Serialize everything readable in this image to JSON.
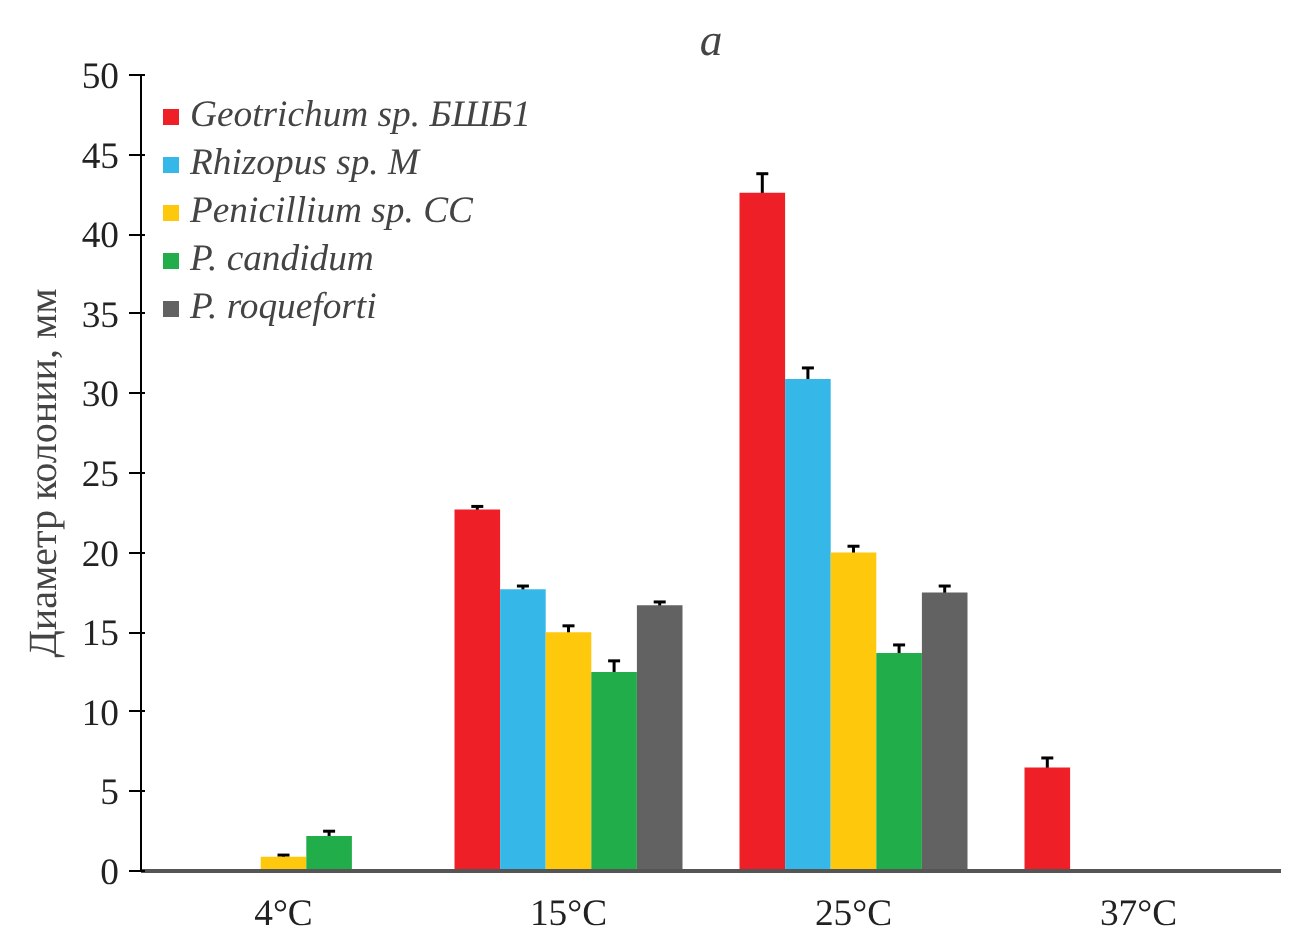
{
  "chart_data": {
    "type": "bar",
    "title": "a",
    "ylabel": "Диаметр колонии, мм",
    "categories": [
      "4°C",
      "15°C",
      "25°C",
      "37°C"
    ],
    "series": [
      {
        "name": "Geotrichum sp. БШБ1",
        "color": "#ee1f26",
        "values": [
          0,
          22.7,
          42.6,
          6.5
        ],
        "errors": [
          null,
          0.2,
          1.2,
          0.6
        ]
      },
      {
        "name": "Rhizopus sp. M",
        "color": "#35b8e8",
        "values": [
          0,
          17.7,
          30.9,
          0
        ],
        "errors": [
          null,
          0.2,
          0.7,
          null
        ]
      },
      {
        "name": "Penicillium sp. CC",
        "color": "#fec90c",
        "values": [
          0.9,
          15.0,
          20.0,
          0
        ],
        "errors": [
          0.1,
          0.4,
          0.4,
          null
        ]
      },
      {
        "name": "P. candidum",
        "color": "#22ad4b",
        "values": [
          2.2,
          12.5,
          13.7,
          0
        ],
        "errors": [
          0.3,
          0.7,
          0.5,
          null
        ]
      },
      {
        "name": "P. roqueforti",
        "color": "#626262",
        "values": [
          0,
          16.7,
          17.5,
          0
        ],
        "errors": [
          null,
          0.2,
          0.4,
          null
        ]
      }
    ],
    "ylim": [
      0,
      50
    ],
    "yticks": [
      0,
      5,
      10,
      15,
      20,
      25,
      30,
      35,
      40,
      45,
      50
    ],
    "grid": false,
    "legend": "top left"
  }
}
